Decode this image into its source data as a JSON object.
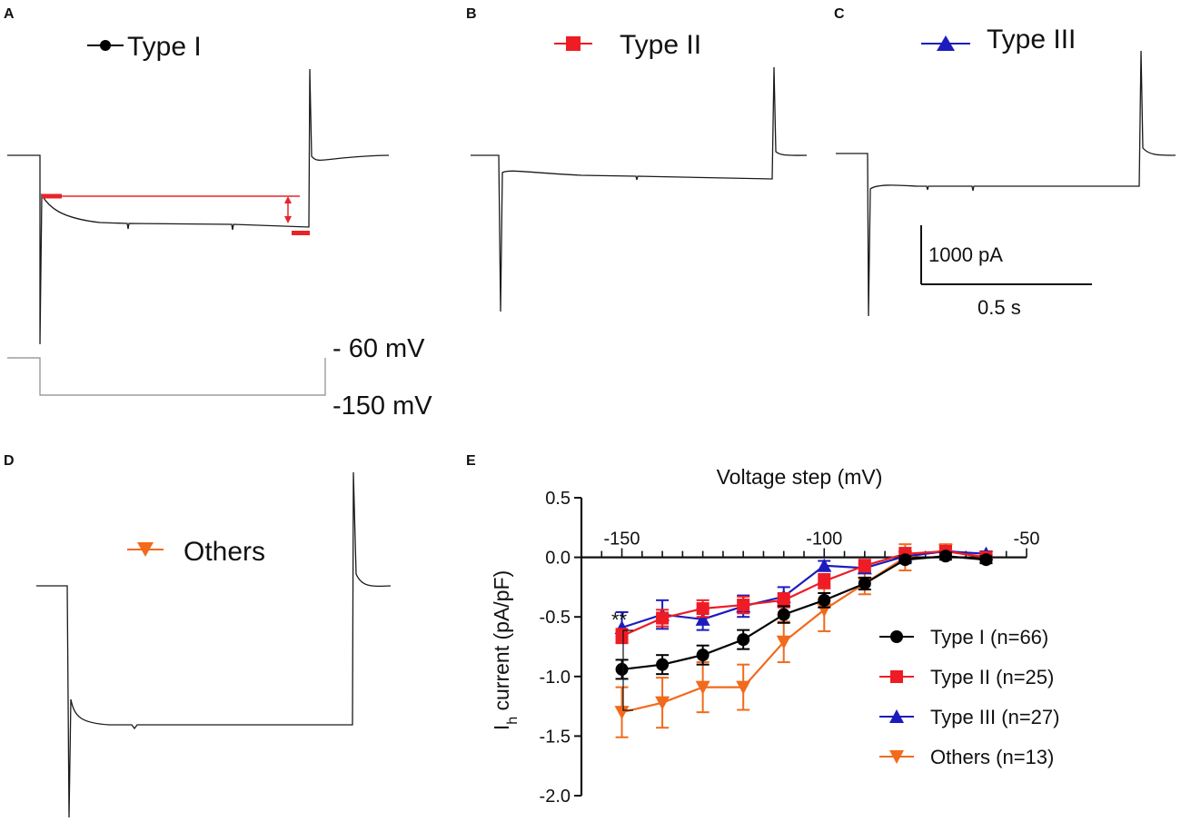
{
  "colors": {
    "type1": "#000000",
    "type2": "#ee1c24",
    "type3": "#1c1cbe",
    "others": "#f26a1b",
    "annotation": "#e8232a",
    "trace": "#1a1a1a",
    "command": "#8a8a8a"
  },
  "panels": {
    "A": {
      "letter": "A",
      "title": "Type I",
      "marker_icon": "circle-marker-icon",
      "voltage_high": "- 60 mV",
      "voltage_low": "-150 mV"
    },
    "B": {
      "letter": "B",
      "title": "Type II",
      "marker_icon": "square-marker-icon"
    },
    "C": {
      "letter": "C",
      "title": "Type III",
      "marker_icon": "triangle-up-marker-icon",
      "scale_current": "1000 pA",
      "scale_time": "0.5 s"
    },
    "D": {
      "letter": "D",
      "title": "Others",
      "marker_icon": "triangle-down-marker-icon"
    },
    "E": {
      "letter": "E"
    }
  },
  "chart_data": {
    "type": "line",
    "title": "",
    "xlabel": "Voltage step (mV)",
    "ylabel_main": "I",
    "ylabel_sub": "h",
    "ylabel_rest": " current (pA/pF)",
    "xlim": [
      -160,
      -50
    ],
    "ylim": [
      -2.0,
      0.5
    ],
    "xticks": [
      -150,
      -100,
      -50
    ],
    "xtick_labels": [
      "-150",
      "-100",
      "-50"
    ],
    "xminor_step": 5,
    "yticks": [
      0.5,
      0.0,
      -0.5,
      -1.0,
      -1.5,
      -2.0
    ],
    "ytick_labels": [
      "0.5",
      "0.0",
      "-0.5",
      "-1.0",
      "-1.5",
      "-2.0"
    ],
    "x": [
      -150,
      -140,
      -130,
      -120,
      -110,
      -100,
      -90,
      -80,
      -70,
      -60
    ],
    "series": [
      {
        "name": "Type I (n=66)",
        "color": "#000000",
        "marker": "circle",
        "values": [
          -0.94,
          -0.9,
          -0.82,
          -0.69,
          -0.48,
          -0.36,
          -0.22,
          -0.02,
          0.01,
          -0.02
        ],
        "errors": [
          0.08,
          0.08,
          0.08,
          0.08,
          0.07,
          0.06,
          0.05,
          0.03,
          0.03,
          0.03
        ]
      },
      {
        "name": "Type II (n=25)",
        "color": "#ee1c24",
        "marker": "square",
        "values": [
          -0.66,
          -0.51,
          -0.43,
          -0.4,
          -0.36,
          -0.2,
          -0.07,
          0.03,
          0.05,
          0.0
        ],
        "errors": [
          0.06,
          0.07,
          0.07,
          0.07,
          0.06,
          0.06,
          0.05,
          0.05,
          0.04,
          0.03
        ]
      },
      {
        "name": "Type III (n=27)",
        "color": "#1c1cbe",
        "marker": "triangle-up",
        "values": [
          -0.59,
          -0.48,
          -0.52,
          -0.41,
          -0.33,
          -0.07,
          -0.09,
          0.01,
          0.05,
          0.03
        ],
        "errors": [
          0.13,
          0.12,
          0.09,
          0.09,
          0.08,
          0.04,
          0.04,
          0.03,
          0.03,
          0.02
        ]
      },
      {
        "name": "Others  (n=13)",
        "color": "#f26a1b",
        "marker": "triangle-down",
        "values": [
          -1.3,
          -1.22,
          -1.09,
          -1.09,
          -0.71,
          -0.44,
          -0.22,
          0.0,
          0.06,
          0.0
        ],
        "errors": [
          0.21,
          0.21,
          0.21,
          0.19,
          0.17,
          0.18,
          0.09,
          0.11,
          0.05,
          0.03
        ]
      }
    ],
    "significance": "**",
    "legend_position": "bottom-right"
  }
}
